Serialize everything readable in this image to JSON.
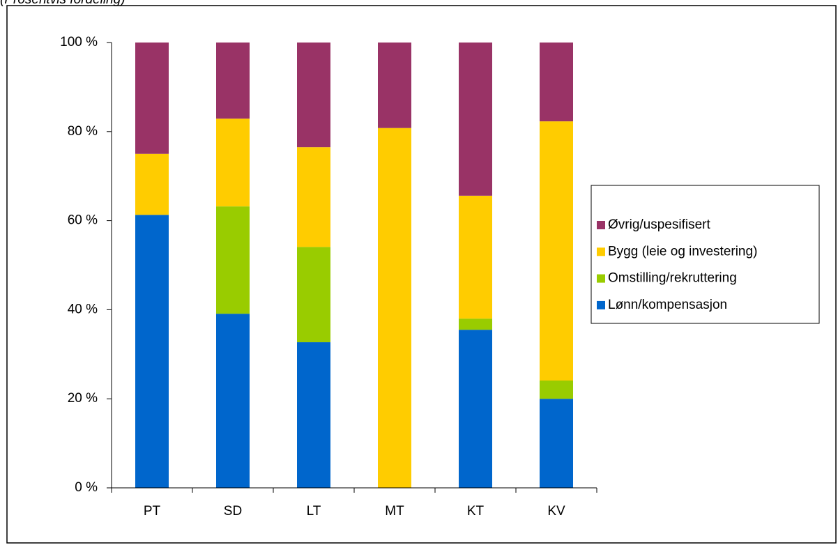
{
  "chart_data": {
    "type": "stacked_bar",
    "subtitle": "(Prosentvis fordeling)",
    "categories": [
      "PT",
      "SD",
      "LT",
      "MT",
      "KT",
      "KV"
    ],
    "series": [
      {
        "name": "Lønn/kompensasjon",
        "color": "#0066cc",
        "values": [
          61.3,
          39.1,
          32.7,
          0,
          35.5,
          20.0
        ]
      },
      {
        "name": "Omstilling/rekruttering",
        "color": "#99cc00",
        "values": [
          0,
          24.1,
          21.4,
          0,
          2.5,
          4.1
        ]
      },
      {
        "name": "Bygg (leie og investering)",
        "color": "#ffcc00",
        "values": [
          13.7,
          19.7,
          22.4,
          80.8,
          27.6,
          58.2
        ]
      },
      {
        "name": "Øvrig/uspesifisert",
        "color": "#993366",
        "values": [
          25.0,
          17.1,
          23.5,
          19.2,
          34.4,
          17.7
        ]
      }
    ],
    "ylim": [
      0,
      100
    ],
    "yticks": [
      {
        "value": 0,
        "label": "0 %"
      },
      {
        "value": 20,
        "label": "20 %"
      },
      {
        "value": 40,
        "label": "40 %"
      },
      {
        "value": 60,
        "label": "60 %"
      },
      {
        "value": 80,
        "label": "80 %"
      },
      {
        "value": 100,
        "label": "100 %"
      }
    ],
    "grid": false,
    "legend": "right"
  }
}
